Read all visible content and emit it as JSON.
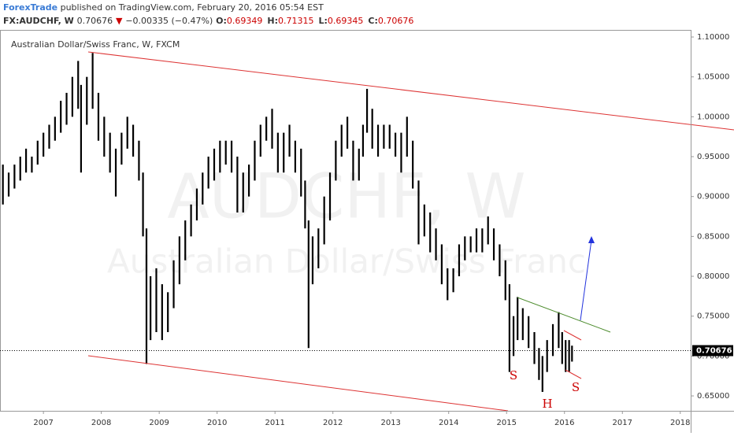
{
  "header": {
    "author": "ForexTrade",
    "published": "published on TradingView.com, February 20, 2016 05:54 EST",
    "symbol": "FX:AUDCHF, W",
    "price": "0.70676",
    "change_arrow": "▼",
    "change": "−0.00335 (−0.47%)",
    "ohlc": [
      {
        "key": "O:",
        "value": "0.69349"
      },
      {
        "key": "H:",
        "value": "0.71315"
      },
      {
        "key": "L:",
        "value": "0.69345"
      },
      {
        "key": "C:",
        "value": "0.70676"
      }
    ]
  },
  "chart_data": {
    "type": "hlbar",
    "title": "Australian Dollar/Swiss Franc, W, FXCM",
    "watermark": [
      "AUDCHF, W",
      "Australian Dollar/Swiss Franc"
    ],
    "color": "#000000",
    "x": [
      2006.3,
      2006.4,
      2006.5,
      2006.6,
      2006.7,
      2006.8,
      2006.9,
      2007.0,
      2007.1,
      2007.2,
      2007.3,
      2007.4,
      2007.5,
      2007.6,
      2007.65,
      2007.75,
      2007.85,
      2007.95,
      2008.05,
      2008.15,
      2008.25,
      2008.35,
      2008.45,
      2008.55,
      2008.65,
      2008.72,
      2008.78,
      2008.85,
      2008.95,
      2009.05,
      2009.15,
      2009.25,
      2009.35,
      2009.45,
      2009.55,
      2009.65,
      2009.75,
      2009.85,
      2009.95,
      2010.05,
      2010.15,
      2010.25,
      2010.35,
      2010.45,
      2010.55,
      2010.65,
      2010.75,
      2010.85,
      2010.95,
      2011.05,
      2011.15,
      2011.25,
      2011.35,
      2011.45,
      2011.52,
      2011.58,
      2011.65,
      2011.75,
      2011.85,
      2011.95,
      2012.05,
      2012.15,
      2012.25,
      2012.35,
      2012.45,
      2012.52,
      2012.59,
      2012.68,
      2012.78,
      2012.88,
      2012.98,
      2013.08,
      2013.18,
      2013.28,
      2013.38,
      2013.48,
      2013.58,
      2013.68,
      2013.78,
      2013.88,
      2013.98,
      2014.08,
      2014.18,
      2014.28,
      2014.38,
      2014.48,
      2014.58,
      2014.68,
      2014.78,
      2014.88,
      2014.98,
      2015.05,
      2015.12,
      2015.19,
      2015.28,
      2015.38,
      2015.48,
      2015.56,
      2015.62,
      2015.7,
      2015.8,
      2015.9,
      2015.96,
      2016.02,
      2016.08,
      2016.13
    ],
    "high": [
      0.94,
      0.93,
      0.94,
      0.95,
      0.96,
      0.95,
      0.97,
      0.98,
      0.99,
      1.0,
      1.02,
      1.03,
      1.05,
      1.07,
      1.04,
      1.05,
      1.08,
      1.03,
      1.0,
      0.98,
      0.96,
      0.98,
      1.0,
      0.99,
      0.97,
      0.93,
      0.86,
      0.8,
      0.81,
      0.79,
      0.78,
      0.82,
      0.85,
      0.87,
      0.89,
      0.91,
      0.93,
      0.95,
      0.96,
      0.97,
      0.97,
      0.97,
      0.95,
      0.93,
      0.94,
      0.97,
      0.99,
      1.0,
      1.01,
      0.98,
      0.98,
      0.99,
      0.97,
      0.96,
      0.92,
      0.87,
      0.85,
      0.86,
      0.9,
      0.93,
      0.97,
      0.99,
      1.0,
      0.97,
      0.96,
      0.99,
      1.035,
      1.01,
      0.99,
      0.99,
      0.99,
      0.98,
      0.98,
      1.0,
      0.97,
      0.92,
      0.89,
      0.88,
      0.86,
      0.84,
      0.81,
      0.81,
      0.84,
      0.85,
      0.85,
      0.86,
      0.86,
      0.875,
      0.86,
      0.84,
      0.82,
      0.79,
      0.75,
      0.774,
      0.76,
      0.75,
      0.73,
      0.71,
      0.7,
      0.72,
      0.74,
      0.755,
      0.73,
      0.72,
      0.72,
      0.713
    ],
    "low": [
      0.89,
      0.9,
      0.91,
      0.92,
      0.93,
      0.93,
      0.94,
      0.95,
      0.96,
      0.97,
      0.98,
      0.99,
      1.0,
      1.01,
      0.93,
      0.99,
      1.01,
      0.97,
      0.95,
      0.93,
      0.9,
      0.94,
      0.96,
      0.95,
      0.92,
      0.85,
      0.69,
      0.72,
      0.73,
      0.72,
      0.73,
      0.76,
      0.79,
      0.82,
      0.85,
      0.87,
      0.89,
      0.91,
      0.92,
      0.93,
      0.94,
      0.93,
      0.88,
      0.88,
      0.9,
      0.92,
      0.95,
      0.97,
      0.96,
      0.93,
      0.93,
      0.95,
      0.93,
      0.9,
      0.86,
      0.71,
      0.79,
      0.81,
      0.84,
      0.87,
      0.92,
      0.95,
      0.96,
      0.92,
      0.92,
      0.95,
      0.98,
      0.96,
      0.95,
      0.96,
      0.96,
      0.95,
      0.93,
      0.95,
      0.91,
      0.84,
      0.85,
      0.83,
      0.82,
      0.79,
      0.77,
      0.78,
      0.8,
      0.82,
      0.83,
      0.83,
      0.83,
      0.84,
      0.82,
      0.8,
      0.77,
      0.68,
      0.7,
      0.72,
      0.72,
      0.71,
      0.69,
      0.67,
      0.655,
      0.68,
      0.7,
      0.71,
      0.69,
      0.68,
      0.68,
      0.693
    ],
    "last_price": 0.70676,
    "annotations": [
      "S",
      "H",
      "S"
    ],
    "xlim": [
      2006.25,
      2018.18
    ],
    "ylim": [
      0.6313,
      1.1089
    ],
    "xticks": [
      2007,
      2008,
      2009,
      2010,
      2011,
      2012,
      2013,
      2014,
      2015,
      2016,
      2017,
      2018
    ],
    "yticks": [
      {
        "value": 0.65,
        "label": "0.65000"
      },
      {
        "value": 0.7,
        "label": "0.70000"
      },
      {
        "value": 0.75,
        "label": "0.75000"
      },
      {
        "value": 0.8,
        "label": "0.80000"
      },
      {
        "value": 0.85,
        "label": "0.85000"
      },
      {
        "value": 0.9,
        "label": "0.90000"
      },
      {
        "value": 0.95,
        "label": "0.95000"
      },
      {
        "value": 1.0,
        "label": "1.00000"
      },
      {
        "value": 1.05,
        "label": "1.05000"
      },
      {
        "value": 1.1,
        "label": "1.10000"
      }
    ]
  }
}
